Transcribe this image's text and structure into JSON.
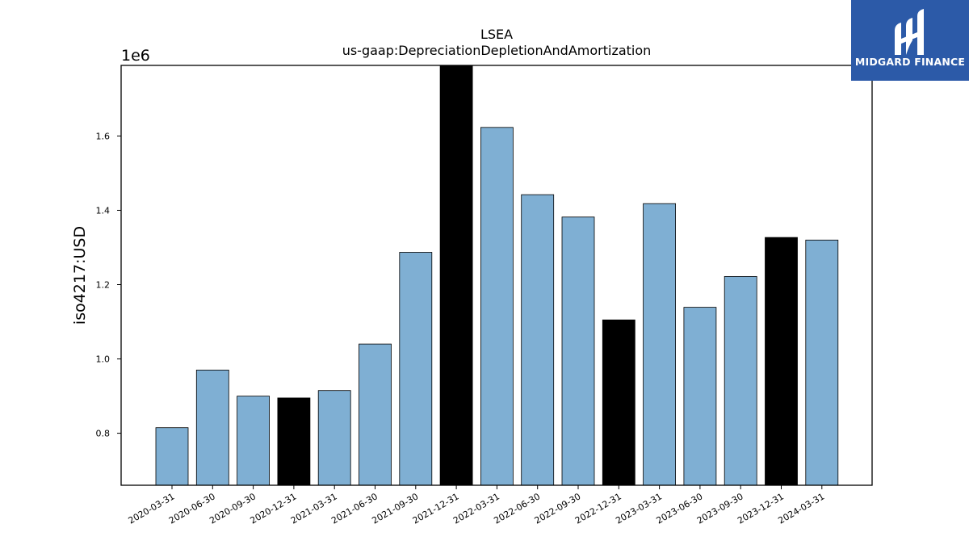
{
  "brand": {
    "name": "MIDGARD FINANCE",
    "logo_icon": "midgard-logo-icon",
    "background_color": "#2c5aa8"
  },
  "chart_data": {
    "type": "bar",
    "title": "LSEA",
    "subtitle": "us-gaap:DepreciationDepletionAndAmortization",
    "xlabel": "",
    "ylabel": "iso4217:USD",
    "y_offset_label": "1e6",
    "ylim": [
      660000,
      1790000
    ],
    "y_ticks": [
      800000,
      1000000,
      1200000,
      1400000,
      1600000
    ],
    "y_tick_labels": [
      "0.8",
      "1.0",
      "1.2",
      "1.4",
      "1.6"
    ],
    "grid": false,
    "categories": [
      "2020-03-31",
      "2020-06-30",
      "2020-09-30",
      "2020-12-31",
      "2021-03-31",
      "2021-06-30",
      "2021-09-30",
      "2021-12-31",
      "2022-03-31",
      "2022-06-30",
      "2022-09-30",
      "2022-12-31",
      "2023-03-31",
      "2023-06-30",
      "2023-09-30",
      "2023-12-31",
      "2024-03-31"
    ],
    "values": [
      815000,
      970000,
      900000,
      895000,
      915000,
      1040000,
      1287000,
      1790000,
      1623000,
      1442000,
      1382000,
      1105000,
      1418000,
      1139000,
      1222000,
      1327000,
      1320000
    ],
    "colors": {
      "quarter": "#7fafd3",
      "year_end": "#000000",
      "edge": "#000000"
    }
  }
}
